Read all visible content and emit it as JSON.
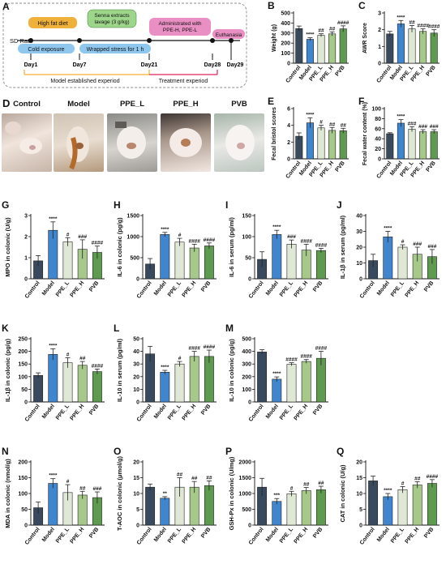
{
  "colors": {
    "Control": "#3a4a5e",
    "Model": "#3f86cf",
    "PPE_L": "#dfe8d4",
    "PPE_H": "#a6c98a",
    "PVB": "#5e9b4f",
    "grey_label": "#9e9e9e",
    "orange_bar": "#f0b13a",
    "green_bar": "#9dd68a",
    "blue_bar": "#8fc7ee",
    "pink_bar": "#e98fc4",
    "arrow_model": "#f3b02b",
    "arrow_treat": "#e0245e"
  },
  "panel_a": {
    "letter": "A",
    "subject": "SD Rat",
    "high_fat": "High fat diet",
    "cold": "Cold exposure",
    "senna": "Senna extracts lavage (3 g/kg)",
    "wrapped": "Wrapped stress for 1 h",
    "administrated": "Administrated with PPE-H, PPE-L",
    "euthanasia": "Euthanasia",
    "days": [
      "Day1",
      "Day7",
      "Day21",
      "Day28",
      "Day29"
    ],
    "model_period": "Model established experiod",
    "treatment_period": "Treatment experiod"
  },
  "panel_d": {
    "letter": "D",
    "titles": [
      "Control",
      "Model",
      "PPE_L",
      "PPE_H",
      "PVB"
    ]
  },
  "chart_data": [
    {
      "id": "B",
      "type": "bar",
      "ylabel": "Weight (g)",
      "ylim": [
        0,
        500
      ],
      "yticks": [
        0,
        100,
        200,
        300,
        400,
        500
      ],
      "categories": [
        "Control",
        "Model",
        "PPE_L",
        "PPE_H",
        "PVB"
      ],
      "values": [
        345,
        238,
        278,
        292,
        342
      ],
      "errors": [
        25,
        15,
        15,
        20,
        30
      ],
      "labels": [
        "",
        "****",
        "##",
        "##",
        "####"
      ]
    },
    {
      "id": "C",
      "type": "bar",
      "ylabel": "AWR Score",
      "ylim": [
        0,
        3
      ],
      "yticks": [
        0,
        1,
        2,
        3
      ],
      "categories": [
        "Control",
        "Model",
        "PPE_L",
        "PPE_H",
        "PVB"
      ],
      "values": [
        1.75,
        2.35,
        2.05,
        1.9,
        1.8
      ],
      "errors": [
        0.15,
        0.2,
        0.2,
        0.15,
        0.2
      ],
      "labels": [
        "",
        "****",
        "##",
        "####",
        "####"
      ]
    },
    {
      "id": "E",
      "type": "bar",
      "ylabel": "Fecal bristol scores",
      "ylim": [
        0,
        6
      ],
      "yticks": [
        0,
        2,
        4,
        6
      ],
      "categories": [
        "Control",
        "Model",
        "PPE_L",
        "PPE_H",
        "PVB"
      ],
      "values": [
        2.7,
        4.3,
        3.7,
        3.4,
        3.35
      ],
      "errors": [
        0.4,
        0.6,
        0.3,
        0.35,
        0.3
      ],
      "labels": [
        "",
        "****",
        "#",
        "##",
        "##"
      ]
    },
    {
      "id": "F",
      "type": "bar",
      "ylabel": "Fecal water content (%)",
      "ylim": [
        0,
        100
      ],
      "yticks": [
        0,
        20,
        40,
        60,
        80,
        100
      ],
      "categories": [
        "Control",
        "Model",
        "PPE_L",
        "PPE_H",
        "PVB"
      ],
      "values": [
        50,
        71,
        59,
        54,
        54
      ],
      "errors": [
        2,
        7,
        5,
        4,
        4
      ],
      "labels": [
        "",
        "****",
        "###",
        "###",
        "###"
      ]
    },
    {
      "id": "G",
      "type": "bar",
      "ylabel": "MPO in colonic (U/g)",
      "ylim": [
        0,
        3
      ],
      "yticks": [
        0,
        1,
        2,
        3
      ],
      "categories": [
        "Control",
        "Model",
        "PPE_L",
        "PPE_H",
        "PVB"
      ],
      "values": [
        0.85,
        2.3,
        1.75,
        1.4,
        1.25
      ],
      "errors": [
        0.25,
        0.4,
        0.2,
        0.45,
        0.3
      ],
      "labels": [
        "",
        "****",
        "#",
        "###",
        "####"
      ]
    },
    {
      "id": "H",
      "type": "bar",
      "ylabel": "IL-6 in colonic (pg/g)",
      "ylim": [
        0,
        1500
      ],
      "yticks": [
        0,
        500,
        1000,
        1500
      ],
      "categories": [
        "Control",
        "Model",
        "PPE_L",
        "PPE_H",
        "PVB"
      ],
      "values": [
        350,
        1050,
        870,
        730,
        780
      ],
      "errors": [
        130,
        50,
        90,
        90,
        70
      ],
      "labels": [
        "",
        "****",
        "#",
        "####",
        "####"
      ]
    },
    {
      "id": "I",
      "type": "bar",
      "ylabel": "IL-6 in serum (pg/ml)",
      "ylim": [
        0,
        150
      ],
      "yticks": [
        0,
        50,
        100,
        150
      ],
      "categories": [
        "Control",
        "Model",
        "PPE_L",
        "PPE_H",
        "PVB"
      ],
      "values": [
        46,
        105,
        82,
        68,
        67
      ],
      "errors": [
        18,
        10,
        10,
        14,
        5
      ],
      "labels": [
        "",
        "****",
        "###",
        "####",
        "####"
      ]
    },
    {
      "id": "J",
      "type": "bar",
      "ylabel": "IL-1β in serum (pg/ml)",
      "ylim": [
        0,
        40
      ],
      "yticks": [
        0,
        10,
        20,
        30,
        40
      ],
      "categories": [
        "Control",
        "Model",
        "PPE_L",
        "PPE_H",
        "PVB"
      ],
      "values": [
        11.5,
        26.5,
        20,
        15.5,
        14
      ],
      "errors": [
        4,
        3.5,
        1.5,
        4.5,
        4.5
      ],
      "labels": [
        "",
        "****",
        "#",
        "###",
        "###"
      ]
    },
    {
      "id": "K",
      "type": "bar",
      "ylabel": "IL-1β in colonic (pg/g)",
      "ylim": [
        0,
        250
      ],
      "yticks": [
        0,
        50,
        100,
        150,
        200,
        250
      ],
      "categories": [
        "Control",
        "Model",
        "PPE_L",
        "PPE_H",
        "PVB"
      ],
      "values": [
        105,
        188,
        155,
        145,
        120
      ],
      "errors": [
        10,
        22,
        20,
        15,
        10
      ],
      "labels": [
        "",
        "****",
        "#",
        "##",
        "####"
      ]
    },
    {
      "id": "L",
      "type": "bar",
      "ylabel": "IL-10 in serum (pg/ml)",
      "ylim": [
        0,
        50
      ],
      "yticks": [
        0,
        10,
        20,
        30,
        40,
        50
      ],
      "categories": [
        "Control",
        "Model",
        "PPE_L",
        "PPE_H",
        "PVB"
      ],
      "values": [
        38,
        23.5,
        30,
        36,
        36
      ],
      "errors": [
        6,
        1.5,
        2,
        4,
        5
      ],
      "labels": [
        "",
        "****",
        "#",
        "####",
        "####"
      ]
    },
    {
      "id": "M",
      "type": "bar",
      "ylabel": "IL-10 in colonic (pg/g)",
      "ylim": [
        0,
        500
      ],
      "yticks": [
        0,
        100,
        200,
        300,
        400,
        500
      ],
      "categories": [
        "Control",
        "Model",
        "PPE_L",
        "PPE_H",
        "PVB"
      ],
      "values": [
        395,
        180,
        298,
        320,
        345
      ],
      "errors": [
        18,
        18,
        12,
        15,
        55
      ],
      "labels": [
        "",
        "****",
        "####",
        "####",
        "####"
      ]
    },
    {
      "id": "N",
      "type": "bar",
      "ylabel": "MDA in colonic (nmol/g)",
      "ylim": [
        0,
        200
      ],
      "yticks": [
        0,
        50,
        100,
        150,
        200
      ],
      "categories": [
        "Control",
        "Model",
        "PPE_L",
        "PPE_H",
        "PVB"
      ],
      "values": [
        55,
        132,
        103,
        95,
        87
      ],
      "errors": [
        18,
        15,
        25,
        12,
        18
      ],
      "labels": [
        "",
        "****",
        "#",
        "##",
        "###"
      ]
    },
    {
      "id": "O",
      "type": "bar",
      "ylabel": "T-AOC in colonic (μmol/g)",
      "ylim": [
        0,
        20
      ],
      "yticks": [
        0,
        5,
        10,
        15,
        20
      ],
      "categories": [
        "Control",
        "Model",
        "PPE_L",
        "PPE_H",
        "PVB"
      ],
      "values": [
        12,
        8.5,
        12,
        12,
        12.5
      ],
      "errors": [
        1,
        0.5,
        3,
        1.8,
        1.5
      ],
      "labels": [
        "",
        "**",
        "##",
        "##",
        "##"
      ]
    },
    {
      "id": "P",
      "type": "bar",
      "ylabel": "GSH-Px in colonic (U/mg)",
      "ylim": [
        0,
        2000
      ],
      "yticks": [
        0,
        500,
        1000,
        1500,
        2000
      ],
      "categories": [
        "Control",
        "Model",
        "PPE_L",
        "PPE_H",
        "PVB"
      ],
      "values": [
        1200,
        750,
        990,
        1090,
        1120
      ],
      "errors": [
        280,
        90,
        80,
        100,
        110
      ],
      "labels": [
        "",
        "***",
        "#",
        "##",
        "##"
      ]
    },
    {
      "id": "Q",
      "type": "bar",
      "ylabel": "CAT in colonic (U/g)",
      "ylim": [
        0,
        20
      ],
      "yticks": [
        0,
        5,
        10,
        15,
        20
      ],
      "categories": [
        "Control",
        "Model",
        "PPE_L",
        "PPE_H",
        "PVB"
      ],
      "values": [
        14,
        9,
        11.2,
        12.7,
        13.2
      ],
      "errors": [
        1.5,
        1,
        1,
        1,
        1.2
      ],
      "labels": [
        "",
        "****",
        "#",
        "##",
        "####"
      ]
    }
  ]
}
